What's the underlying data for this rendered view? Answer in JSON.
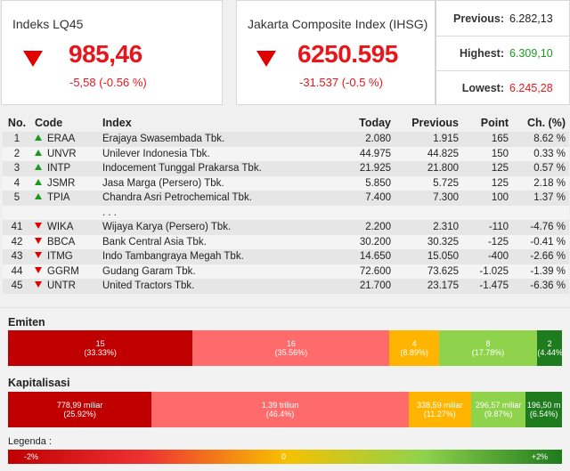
{
  "lq45": {
    "title": "Indeks LQ45",
    "value": "985,46",
    "change": "-5,58 (-0.56 %)"
  },
  "ihsg": {
    "title": "Jakarta Composite Index (IHSG)",
    "value": "6250.595",
    "change": "-31.537 (-0.5 %)"
  },
  "stats": [
    {
      "label": "Previous:",
      "value": "6.282,13",
      "color": "#222222"
    },
    {
      "label": "Highest:",
      "value": "6.309,10",
      "color": "#1a9a1a"
    },
    {
      "label": "Lowest:",
      "value": "6.245,28",
      "color": "#e8161b"
    }
  ],
  "table": {
    "headers": [
      "No.",
      "Code",
      "Index",
      "Today",
      "Previous",
      "Point",
      "Ch. (%)"
    ],
    "rows": [
      {
        "no": "1",
        "dir": "up",
        "code": "ERAA",
        "name": "Erajaya Swasembada Tbk.",
        "today": "2.080",
        "prev": "1.915",
        "point": "165",
        "ch": "8.62 %"
      },
      {
        "no": "2",
        "dir": "up",
        "code": "UNVR",
        "name": "Unilever Indonesia Tbk.",
        "today": "44.975",
        "prev": "44.825",
        "point": "150",
        "ch": "0.33 %"
      },
      {
        "no": "3",
        "dir": "up",
        "code": "INTP",
        "name": "Indocement Tunggal Prakarsa Tbk.",
        "today": "21.925",
        "prev": "21.800",
        "point": "125",
        "ch": "0.57 %"
      },
      {
        "no": "4",
        "dir": "up",
        "code": "JSMR",
        "name": "Jasa Marga (Persero) Tbk.",
        "today": "5.850",
        "prev": "5.725",
        "point": "125",
        "ch": "2.18 %"
      },
      {
        "no": "5",
        "dir": "up",
        "code": "TPIA",
        "name": "Chandra Asri Petrochemical Tbk.",
        "today": "7.400",
        "prev": "7.300",
        "point": "100",
        "ch": "1.37 %"
      },
      {
        "no": "",
        "dir": "",
        "code": "",
        "name": ". . .",
        "today": "",
        "prev": "",
        "point": "",
        "ch": ""
      },
      {
        "no": "41",
        "dir": "down",
        "code": "WIKA",
        "name": "Wijaya Karya (Persero) Tbk.",
        "today": "2.200",
        "prev": "2.310",
        "point": "-110",
        "ch": "-4.76 %"
      },
      {
        "no": "42",
        "dir": "down",
        "code": "BBCA",
        "name": "Bank Central Asia Tbk.",
        "today": "30.200",
        "prev": "30.325",
        "point": "-125",
        "ch": "-0.41 %"
      },
      {
        "no": "43",
        "dir": "down",
        "code": "ITMG",
        "name": "Indo Tambangraya Megah Tbk.",
        "today": "14.650",
        "prev": "15.050",
        "point": "-400",
        "ch": "-2.66 %"
      },
      {
        "no": "44",
        "dir": "down",
        "code": "GGRM",
        "name": "Gudang Garam Tbk.",
        "today": "72.600",
        "prev": "73.625",
        "point": "-1.025",
        "ch": "-1.39 %"
      },
      {
        "no": "45",
        "dir": "down",
        "code": "UNTR",
        "name": "United Tractors Tbk.",
        "today": "21.700",
        "prev": "23.175",
        "point": "-1.475",
        "ch": "-6.36 %"
      }
    ]
  },
  "emiten": {
    "title": "Emiten",
    "segments": [
      {
        "top": "15",
        "bottom": "(33.33%)",
        "share": 33.33,
        "color": "#c00000"
      },
      {
        "top": "16",
        "bottom": "(35.56%)",
        "share": 35.56,
        "color": "#ff6b6b"
      },
      {
        "top": "4",
        "bottom": "(8.89%)",
        "share": 8.89,
        "color": "#ffb400"
      },
      {
        "top": "8",
        "bottom": "(17.78%)",
        "share": 17.78,
        "color": "#8fd24c"
      },
      {
        "top": "2",
        "bottom": "(4.44%)",
        "share": 4.44,
        "color": "#1e7b1e"
      }
    ]
  },
  "kapitalisasi": {
    "title": "Kapitalisasi",
    "segments": [
      {
        "top": "778,99 miliar",
        "bottom": "(25.92%)",
        "share": 25.92,
        "color": "#c00000"
      },
      {
        "top": "1,39 triliun",
        "bottom": "(46.4%)",
        "share": 46.4,
        "color": "#ff6b6b"
      },
      {
        "top": "338,59 miliar",
        "bottom": "(11.27%)",
        "share": 11.27,
        "color": "#ffb400"
      },
      {
        "top": "296,57 miliar",
        "bottom": "(9.87%)",
        "share": 9.87,
        "color": "#8fd24c"
      },
      {
        "top": "196,50 m",
        "bottom": "(6.54%)",
        "share": 6.54,
        "color": "#1e7b1e"
      }
    ]
  },
  "legend": {
    "title": "Legenda :",
    "min": "-2%",
    "mid": "0",
    "max": "+2%"
  }
}
